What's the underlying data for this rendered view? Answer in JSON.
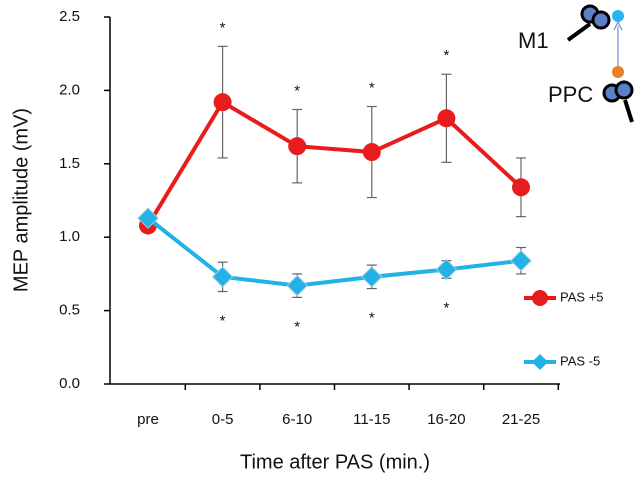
{
  "chart_data": {
    "type": "line",
    "xlabel": "Time after PAS (min.)",
    "ylabel": "MEP amplitude (mV)",
    "categories": [
      "pre",
      "0-5",
      "6-10",
      "11-15",
      "16-20",
      "21-25"
    ],
    "series": [
      {
        "name": "PAS +5",
        "color": "#e81c1c",
        "marker": "circle",
        "values": [
          1.08,
          1.92,
          1.62,
          1.58,
          1.81,
          1.34
        ],
        "errors": [
          null,
          0.38,
          0.25,
          0.31,
          0.3,
          0.2
        ]
      },
      {
        "name": "PAS -5",
        "color": "#22b2e8",
        "marker": "diamond",
        "values": [
          1.13,
          0.73,
          0.67,
          0.73,
          0.78,
          0.84
        ],
        "errors": [
          null,
          0.1,
          0.08,
          0.08,
          0.06,
          0.09
        ]
      }
    ],
    "ylim": [
      0,
      2.5
    ],
    "yticks": [
      {
        "value": 0,
        "label": "0.0"
      },
      0.5,
      {
        "value": 1,
        "label": "1.0"
      },
      1.5,
      {
        "value": 2,
        "label": "2.0"
      },
      2.5
    ],
    "annotations": [
      {
        "text": "*",
        "series": "PAS +5",
        "category": "0-5"
      },
      {
        "text": "*",
        "series": "PAS +5",
        "category": "6-10"
      },
      {
        "text": "*",
        "series": "PAS +5",
        "category": "11-15"
      },
      {
        "text": "*",
        "series": "PAS +5",
        "category": "16-20"
      },
      {
        "text": "*",
        "series": "PAS -5",
        "category": "0-5"
      },
      {
        "text": "*",
        "series": "PAS -5",
        "category": "6-10"
      },
      {
        "text": "*",
        "series": "PAS -5",
        "category": "11-15"
      },
      {
        "text": "*",
        "series": "PAS -5",
        "category": "16-20"
      }
    ],
    "inset_labels": [
      "M1",
      "PPC"
    ]
  }
}
